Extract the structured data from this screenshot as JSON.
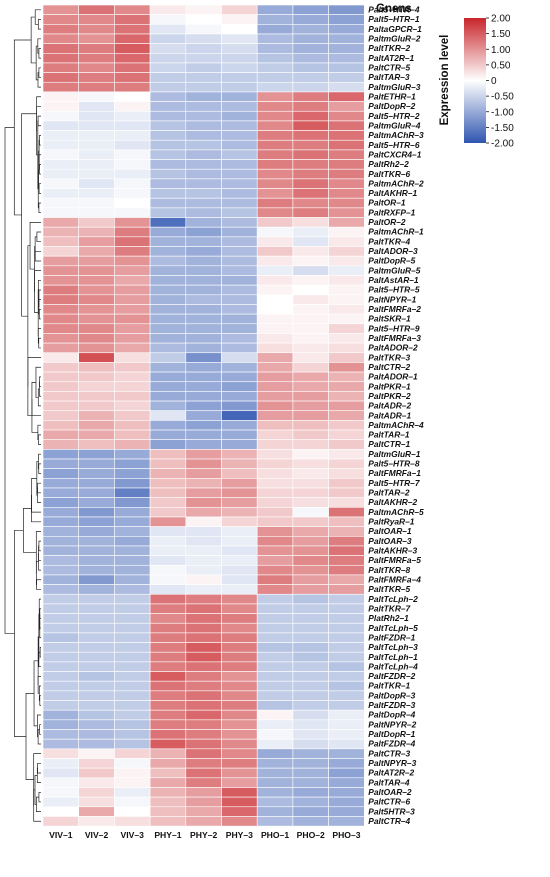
{
  "chart_data": {
    "type": "heatmap",
    "title": "Gnens",
    "legend_title": "Expression level",
    "color_scale": {
      "min": -2,
      "max": 2,
      "low_color": "#2f55b0",
      "mid_color": "#ffffff",
      "high_color": "#c8262b"
    },
    "legend_ticks": [
      "2.00",
      "1.50",
      "1.00",
      "0.50",
      "0",
      "-0.50",
      "-1.00",
      "-1.50",
      "-2.00"
    ],
    "columns": [
      "VIV–1",
      "VIV–2",
      "VIV–3",
      "PHY–1",
      "PHY–2",
      "PHY–3",
      "PHO–1",
      "PHO–2",
      "PHO–3"
    ],
    "rows": [
      {
        "gene": "Palt5–HTR–4",
        "values": [
          1.0,
          1.3,
          1.1,
          0.2,
          0.1,
          0.4,
          -1.0,
          -1.1,
          -1.2
        ]
      },
      {
        "gene": "Palt5–HTR–1",
        "values": [
          1.1,
          1.1,
          1.3,
          -0.1,
          0.0,
          0.1,
          -0.9,
          -1.0,
          -1.1
        ]
      },
      {
        "gene": "PaltaGPCR–1",
        "values": [
          1.2,
          1.1,
          1.3,
          -0.3,
          -0.1,
          0.0,
          -1.0,
          -0.9,
          -1.0
        ]
      },
      {
        "gene": "PaltmGluR–2",
        "values": [
          1.1,
          1.0,
          1.4,
          -0.5,
          -0.4,
          -0.3,
          -0.8,
          -0.9,
          -0.9
        ]
      },
      {
        "gene": "PaltTKR–2",
        "values": [
          1.3,
          1.2,
          1.5,
          -0.4,
          -0.5,
          -0.4,
          -0.8,
          -0.9,
          -0.9
        ]
      },
      {
        "gene": "PaltAT2R–1",
        "values": [
          1.3,
          1.2,
          1.4,
          -0.5,
          -0.5,
          -0.5,
          -0.7,
          -0.8,
          -0.8
        ]
      },
      {
        "gene": "PaltCTR–5",
        "values": [
          1.2,
          1.1,
          1.3,
          -0.5,
          -0.6,
          -0.5,
          -0.6,
          -0.7,
          -0.7
        ]
      },
      {
        "gene": "PaltTAR–3",
        "values": [
          1.3,
          1.2,
          1.3,
          -0.6,
          -0.6,
          -0.6,
          -0.6,
          -0.6,
          -0.6
        ]
      },
      {
        "gene": "PaltmGluR–3",
        "values": [
          1.2,
          1.2,
          1.2,
          -0.6,
          -0.6,
          -0.6,
          -0.5,
          -0.5,
          -0.4
        ]
      },
      {
        "gene": "PaltETHR–1",
        "values": [
          0.1,
          -0.1,
          0.0,
          -0.8,
          -0.9,
          -0.9,
          1.0,
          1.2,
          1.4
        ]
      },
      {
        "gene": "PaltDopR–2",
        "values": [
          0.1,
          -0.3,
          0.1,
          -0.8,
          -0.8,
          -0.8,
          1.1,
          1.2,
          0.9
        ]
      },
      {
        "gene": "Palt5–HTR–2",
        "values": [
          -0.1,
          -0.3,
          -0.2,
          -0.8,
          -0.8,
          -0.9,
          1.1,
          1.4,
          1.1
        ]
      },
      {
        "gene": "PaltmGluR–4",
        "values": [
          -0.3,
          -0.3,
          -0.3,
          -0.7,
          -0.8,
          -0.8,
          1.1,
          1.5,
          1.3
        ]
      },
      {
        "gene": "PaltmAChR–3",
        "values": [
          -0.2,
          -0.2,
          -0.2,
          -0.7,
          -0.8,
          -0.8,
          1.2,
          1.3,
          1.3
        ]
      },
      {
        "gene": "Palt5–HTR–6",
        "values": [
          -0.2,
          -0.2,
          -0.3,
          -0.7,
          -0.7,
          -0.8,
          1.2,
          1.2,
          1.3
        ]
      },
      {
        "gene": "PaltCXCR4–1",
        "values": [
          -0.1,
          -0.2,
          -0.1,
          -0.7,
          -0.8,
          -0.7,
          1.2,
          1.3,
          1.2
        ]
      },
      {
        "gene": "PaltRh2–2",
        "values": [
          -0.2,
          -0.2,
          -0.1,
          -0.8,
          -0.8,
          -0.8,
          1.2,
          1.2,
          1.2
        ]
      },
      {
        "gene": "PaltTKR–6",
        "values": [
          -0.2,
          -0.2,
          -0.2,
          -0.7,
          -0.8,
          -0.8,
          1.1,
          1.2,
          1.2
        ]
      },
      {
        "gene": "PaltmAChR–2",
        "values": [
          -0.1,
          -0.3,
          -0.1,
          -0.8,
          -0.8,
          -0.8,
          1.1,
          1.3,
          1.1
        ]
      },
      {
        "gene": "PaltAKHR–1",
        "values": [
          -0.2,
          -0.2,
          -0.1,
          -0.7,
          -0.7,
          -0.8,
          1.0,
          1.3,
          1.1
        ]
      },
      {
        "gene": "PaltOR–1",
        "values": [
          -0.1,
          -0.1,
          0.0,
          -0.8,
          -0.8,
          -0.8,
          1.2,
          1.1,
          1.1
        ]
      },
      {
        "gene": "PaltRXFP–1",
        "values": [
          -0.1,
          -0.1,
          -0.1,
          -0.7,
          -0.8,
          -0.7,
          1.1,
          1.2,
          1.0
        ]
      },
      {
        "gene": "PaltOR–2",
        "values": [
          0.8,
          0.5,
          1.0,
          -1.7,
          -0.9,
          -0.8,
          0.5,
          0.3,
          0.8
        ]
      },
      {
        "gene": "PaltmAChR–1",
        "values": [
          0.7,
          0.7,
          1.2,
          -1.0,
          -1.1,
          -0.9,
          -0.1,
          -0.2,
          0.1
        ]
      },
      {
        "gene": "PaltTKR–4",
        "values": [
          0.6,
          0.9,
          1.3,
          -0.9,
          -0.9,
          -0.8,
          0.2,
          -0.3,
          0.2
        ]
      },
      {
        "gene": "PaltADOR–3",
        "values": [
          0.4,
          0.8,
          1.2,
          -0.9,
          -1.0,
          -0.8,
          0.5,
          0.2,
          0.4
        ]
      },
      {
        "gene": "PaltDopR–5",
        "values": [
          0.9,
          0.9,
          1.0,
          -0.8,
          -0.9,
          -0.8,
          0.2,
          0.1,
          0.2
        ]
      },
      {
        "gene": "PaltmGluR–5",
        "values": [
          1.0,
          1.0,
          0.9,
          -0.9,
          -0.9,
          -0.8,
          -0.2,
          -0.4,
          -0.2
        ]
      },
      {
        "gene": "PaltAstAR–1",
        "values": [
          1.0,
          1.0,
          0.8,
          -0.9,
          -0.9,
          -0.9,
          0.2,
          0.1,
          0.2
        ]
      },
      {
        "gene": "Palt5–HTR–5",
        "values": [
          1.2,
          1.0,
          0.9,
          -0.9,
          -0.9,
          -0.8,
          0.1,
          0.0,
          0.1
        ]
      },
      {
        "gene": "PaltNPYR–1",
        "values": [
          1.2,
          1.1,
          0.9,
          -0.9,
          -0.8,
          -0.8,
          0.0,
          0.2,
          0.1
        ]
      },
      {
        "gene": "PaltFMRFa–2",
        "values": [
          1.1,
          1.0,
          0.9,
          -0.9,
          -0.9,
          -0.8,
          0.0,
          0.1,
          0.2
        ]
      },
      {
        "gene": "PaltSKR–1",
        "values": [
          1.1,
          1.0,
          1.0,
          -0.9,
          -0.9,
          -0.9,
          0.1,
          0.1,
          0.1
        ]
      },
      {
        "gene": "Palt5–HTR–9",
        "values": [
          1.1,
          1.1,
          0.9,
          -0.9,
          -0.9,
          -0.9,
          0.1,
          0.1,
          0.4
        ]
      },
      {
        "gene": "PaltFMRFa–3",
        "values": [
          1.0,
          1.1,
          0.9,
          -0.9,
          -0.9,
          -0.8,
          0.2,
          0.1,
          0.2
        ]
      },
      {
        "gene": "PaltADOR–2",
        "values": [
          0.9,
          1.0,
          0.8,
          -0.8,
          -0.9,
          -0.8,
          0.3,
          0.2,
          0.3
        ]
      },
      {
        "gene": "PaltTKR–3",
        "values": [
          0.2,
          1.6,
          0.3,
          -0.6,
          -1.3,
          -0.4,
          0.8,
          0.2,
          0.5
        ]
      },
      {
        "gene": "PaltCTR–2",
        "values": [
          0.5,
          0.6,
          0.5,
          -0.9,
          -1.0,
          -0.9,
          0.8,
          0.4,
          1.0
        ]
      },
      {
        "gene": "PaltADOR–1",
        "values": [
          0.5,
          0.5,
          0.4,
          -1.0,
          -1.0,
          -1.0,
          0.9,
          0.8,
          0.7
        ]
      },
      {
        "gene": "PaltPKR–1",
        "values": [
          0.5,
          0.4,
          0.4,
          -1.0,
          -1.0,
          -1.1,
          0.9,
          0.8,
          0.8
        ]
      },
      {
        "gene": "PaltPKR–2",
        "values": [
          0.5,
          0.5,
          0.5,
          -1.0,
          -1.0,
          -1.0,
          0.9,
          0.9,
          0.7
        ]
      },
      {
        "gene": "PaltADR–2",
        "values": [
          0.5,
          0.5,
          0.4,
          -0.9,
          -1.1,
          -1.2,
          1.0,
          0.9,
          0.9
        ]
      },
      {
        "gene": "PaltADR–1",
        "values": [
          0.5,
          0.7,
          0.5,
          -0.3,
          -1.0,
          -1.8,
          0.9,
          0.9,
          0.8
        ]
      },
      {
        "gene": "PaltmAChR–4",
        "values": [
          0.6,
          0.8,
          0.6,
          -1.0,
          -1.1,
          -1.0,
          0.6,
          0.6,
          0.5
        ]
      },
      {
        "gene": "PaltTAR–1",
        "values": [
          0.8,
          0.8,
          0.6,
          -1.0,
          -1.0,
          -1.0,
          0.4,
          0.5,
          0.4
        ]
      },
      {
        "gene": "PaltCTR–1",
        "values": [
          0.7,
          0.6,
          0.7,
          -1.1,
          -1.0,
          -1.0,
          0.4,
          0.4,
          0.5
        ]
      },
      {
        "gene": "PaltmGluR–1",
        "values": [
          -1.1,
          -1.1,
          -1.0,
          0.6,
          0.9,
          0.7,
          0.3,
          0.1,
          0.2
        ]
      },
      {
        "gene": "Palt5–HTR–8",
        "values": [
          -1.0,
          -1.0,
          -1.1,
          0.6,
          1.0,
          0.7,
          0.4,
          0.3,
          0.4
        ]
      },
      {
        "gene": "PaltFMRFa–1",
        "values": [
          -1.1,
          -1.0,
          -1.1,
          0.7,
          0.9,
          0.6,
          0.3,
          0.2,
          0.3
        ]
      },
      {
        "gene": "Palt5–HTR–7",
        "values": [
          -1.0,
          -1.0,
          -1.2,
          0.6,
          0.7,
          0.9,
          0.3,
          0.3,
          0.5
        ]
      },
      {
        "gene": "PaltTAR–2",
        "values": [
          -1.0,
          -1.0,
          -1.5,
          0.6,
          0.9,
          1.0,
          0.4,
          0.4,
          0.5
        ]
      },
      {
        "gene": "PaltAKHR–2",
        "values": [
          -1.1,
          -1.0,
          -1.2,
          0.5,
          1.0,
          0.9,
          0.4,
          0.3,
          0.3
        ]
      },
      {
        "gene": "PaltmAChR–5",
        "values": [
          -1.0,
          -1.2,
          -1.0,
          0.5,
          0.8,
          0.7,
          0.5,
          -0.1,
          1.3
        ]
      },
      {
        "gene": "PaltRyaR–1",
        "values": [
          -1.0,
          -1.1,
          -1.0,
          1.0,
          0.1,
          0.4,
          0.5,
          0.5,
          0.6
        ]
      },
      {
        "gene": "PaltOAR–1",
        "values": [
          -0.9,
          -1.0,
          -0.9,
          -0.3,
          -0.3,
          -0.2,
          1.0,
          0.8,
          0.7
        ]
      },
      {
        "gene": "PaltOAR–3",
        "values": [
          -0.9,
          -0.9,
          -1.0,
          -0.2,
          -0.3,
          -0.2,
          1.1,
          0.9,
          1.2
        ]
      },
      {
        "gene": "PaltAKHR–3",
        "values": [
          -0.9,
          -0.9,
          -0.9,
          -0.2,
          -0.2,
          -0.3,
          1.0,
          1.0,
          1.3
        ]
      },
      {
        "gene": "PaltFMRFa–5",
        "values": [
          -0.8,
          -0.9,
          -0.9,
          -0.3,
          -0.2,
          -0.2,
          0.9,
          1.1,
          1.2
        ]
      },
      {
        "gene": "PaltTKR–8",
        "values": [
          -0.8,
          -0.9,
          -0.9,
          -0.1,
          -0.2,
          -0.3,
          1.1,
          1.0,
          1.2
        ]
      },
      {
        "gene": "PaltFMRFa–4",
        "values": [
          -0.9,
          -1.2,
          -0.9,
          -0.1,
          0.1,
          -0.3,
          1.2,
          0.9,
          0.8
        ]
      },
      {
        "gene": "PaltTKR–5",
        "values": [
          -0.8,
          -0.9,
          -0.8,
          -0.3,
          -0.2,
          -0.2,
          1.1,
          0.9,
          0.9
        ]
      },
      {
        "gene": "PaltTcLph–2",
        "values": [
          -0.6,
          -0.6,
          -0.6,
          1.3,
          1.2,
          1.1,
          -0.6,
          -0.7,
          -0.6
        ]
      },
      {
        "gene": "PaltTKR–7",
        "values": [
          -0.6,
          -0.6,
          -0.6,
          1.2,
          1.3,
          1.1,
          -0.6,
          -0.6,
          -0.6
        ]
      },
      {
        "gene": "PlatRh2–1",
        "values": [
          -0.6,
          -0.6,
          -0.6,
          1.1,
          1.3,
          1.2,
          -0.6,
          -0.6,
          -0.6
        ]
      },
      {
        "gene": "PaltTcLph–5",
        "values": [
          -0.6,
          -0.6,
          -0.6,
          1.2,
          1.3,
          1.1,
          -0.6,
          -0.6,
          -0.6
        ]
      },
      {
        "gene": "PaltFZDR–1",
        "values": [
          -0.7,
          -0.6,
          -0.6,
          1.2,
          1.3,
          1.2,
          -0.6,
          -0.6,
          -0.6
        ]
      },
      {
        "gene": "PaltTcLph–3",
        "values": [
          -0.6,
          -0.6,
          -0.6,
          1.2,
          1.5,
          1.2,
          -0.7,
          -0.7,
          -0.6
        ]
      },
      {
        "gene": "PaltTcLph–1",
        "values": [
          -0.6,
          -0.6,
          -0.6,
          1.2,
          1.5,
          1.2,
          -0.6,
          -0.7,
          -0.6
        ]
      },
      {
        "gene": "PaltTcLph–4",
        "values": [
          -0.6,
          -0.6,
          -0.6,
          1.2,
          1.3,
          1.2,
          -0.6,
          -0.6,
          -0.7
        ]
      },
      {
        "gene": "PaltFZDR–2",
        "values": [
          -0.6,
          -0.7,
          -0.6,
          1.5,
          1.2,
          1.0,
          -0.6,
          -0.6,
          -0.6
        ]
      },
      {
        "gene": "PaltTKR–1",
        "values": [
          -0.6,
          -0.6,
          -0.6,
          1.3,
          1.2,
          1.1,
          -0.6,
          -0.6,
          -0.7
        ]
      },
      {
        "gene": "PaltDopR–3",
        "values": [
          -0.6,
          -0.6,
          -0.6,
          1.2,
          1.3,
          1.1,
          -0.6,
          -0.6,
          -0.6
        ]
      },
      {
        "gene": "PaltFZDR–3",
        "values": [
          -0.6,
          -0.6,
          -0.6,
          1.2,
          1.3,
          1.2,
          -0.7,
          -0.6,
          -0.6
        ]
      },
      {
        "gene": "PaltDopR–4",
        "values": [
          -0.9,
          -0.7,
          -0.6,
          1.2,
          1.4,
          1.1,
          0.1,
          -0.4,
          -0.2
        ]
      },
      {
        "gene": "PaltNPYR–2",
        "values": [
          -0.9,
          -0.8,
          -0.7,
          1.2,
          1.2,
          1.0,
          -0.2,
          -0.3,
          -0.2
        ]
      },
      {
        "gene": "PaltDopR–1",
        "values": [
          -0.8,
          -0.8,
          -0.7,
          1.3,
          1.2,
          1.0,
          -0.1,
          -0.3,
          -0.2
        ]
      },
      {
        "gene": "PaltFZDR–4",
        "values": [
          -0.8,
          -0.8,
          -0.7,
          1.5,
          1.3,
          1.1,
          -0.2,
          -0.4,
          -0.3
        ]
      },
      {
        "gene": "PaltCTR–3",
        "values": [
          0.3,
          0.1,
          0.4,
          0.7,
          1.3,
          1.1,
          -1.0,
          -0.9,
          -0.9
        ]
      },
      {
        "gene": "PaltNPYR–3",
        "values": [
          -0.2,
          0.4,
          -0.1,
          0.8,
          1.2,
          1.2,
          -0.9,
          -0.9,
          -1.0
        ]
      },
      {
        "gene": "PaltAT2R–2",
        "values": [
          -0.3,
          0.5,
          0.1,
          0.6,
          1.3,
          1.0,
          -0.9,
          -0.9,
          -1.1
        ]
      },
      {
        "gene": "PaltTAR–4",
        "values": [
          -0.1,
          0.2,
          0.1,
          0.8,
          1.2,
          0.9,
          -0.9,
          -0.9,
          -1.0
        ]
      },
      {
        "gene": "PaltOAR–2",
        "values": [
          -0.1,
          0.4,
          -0.2,
          0.7,
          0.9,
          1.5,
          -0.9,
          -1.0,
          -1.0
        ]
      },
      {
        "gene": "PaltCTR–6",
        "values": [
          -0.2,
          0.3,
          -0.1,
          0.6,
          0.9,
          1.5,
          -0.8,
          -0.9,
          -1.0
        ]
      },
      {
        "gene": "Palt5HTR–3",
        "values": [
          0.0,
          0.8,
          0.0,
          0.6,
          0.8,
          1.4,
          -0.9,
          -1.0,
          -1.0
        ]
      },
      {
        "gene": "PaltCTR–4",
        "values": [
          0.4,
          0.2,
          0.3,
          0.6,
          0.8,
          1.1,
          -0.8,
          -0.9,
          -0.9
        ]
      }
    ]
  }
}
